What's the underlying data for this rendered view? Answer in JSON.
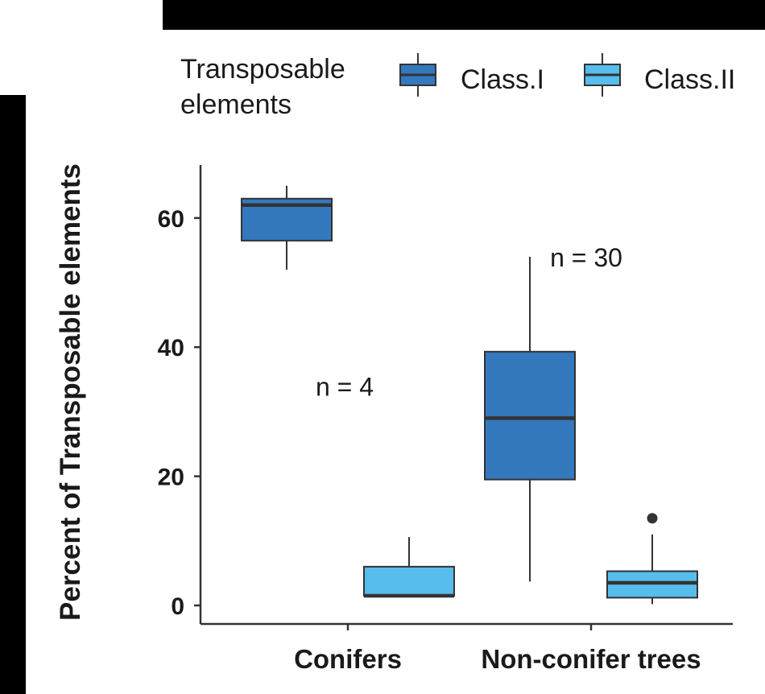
{
  "chart_data": {
    "type": "boxplot",
    "title": "",
    "xlabel": "",
    "ylabel": "Percent of Transposable elements",
    "categories": [
      "Conifers",
      "Non-conifer trees"
    ],
    "yticks": [
      0,
      20,
      40,
      60
    ],
    "ylim": [
      -3,
      68
    ],
    "grid": false,
    "legend": {
      "title": "Transposable elements",
      "title_lines": [
        "Transposable",
        "elements"
      ],
      "position": "top",
      "entries": [
        "Class.I",
        "Class.II"
      ]
    },
    "series": [
      {
        "name": "Class.I",
        "color": "#3478be",
        "boxes": [
          {
            "category": "Conifers",
            "min": 52,
            "q1": 56.5,
            "median": 62,
            "q3": 63,
            "max": 65,
            "outliers": []
          },
          {
            "category": "Non-conifer trees",
            "min": 3.7,
            "q1": 19.5,
            "median": 29,
            "q3": 39.3,
            "max": 54,
            "outliers": []
          }
        ]
      },
      {
        "name": "Class.II",
        "color": "#56bdec",
        "boxes": [
          {
            "category": "Conifers",
            "min": 1.5,
            "q1": 1.5,
            "median": 1.5,
            "q3": 6,
            "max": 10.6,
            "outliers": []
          },
          {
            "category": "Non-conifer trees",
            "min": 0.2,
            "q1": 1.2,
            "median": 3.5,
            "q3": 5.3,
            "max": 11,
            "outliers": [
              13.5
            ]
          }
        ]
      }
    ],
    "annotations": [
      {
        "text": "n = 4",
        "category": "Conifers",
        "y": 34
      },
      {
        "text": "n = 30",
        "category": "Non-conifer trees",
        "y": 54
      }
    ]
  }
}
